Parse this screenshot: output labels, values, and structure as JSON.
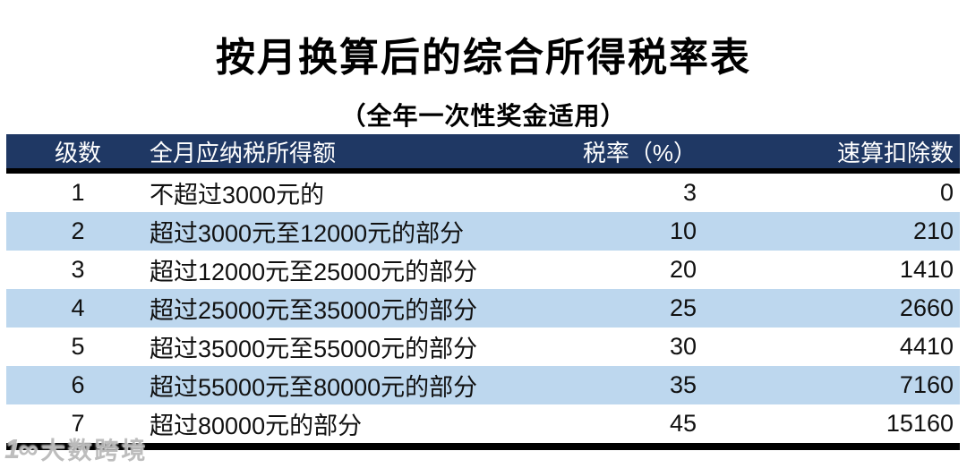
{
  "page": {
    "title": "按月换算后的综合所得税率表",
    "subtitle": "（全年一次性奖金适用）"
  },
  "table": {
    "columns": [
      "级数",
      "全月应纳税所得额",
      "税率（%）",
      "速算扣除数"
    ],
    "rows": [
      {
        "level": "1",
        "income": "不超过3000元的",
        "rate": "3",
        "deduction": "0"
      },
      {
        "level": "2",
        "income": "超过3000元至12000元的部分",
        "rate": "10",
        "deduction": "210"
      },
      {
        "level": "3",
        "income": "超过12000元至25000元的部分",
        "rate": "20",
        "deduction": "1410"
      },
      {
        "level": "4",
        "income": "超过25000元至35000元的部分",
        "rate": "25",
        "deduction": "2660"
      },
      {
        "level": "5",
        "income": "超过35000元至55000元的部分",
        "rate": "30",
        "deduction": "4410"
      },
      {
        "level": "6",
        "income": "超过55000元至80000元的部分",
        "rate": "35",
        "deduction": "7160"
      },
      {
        "level": "7",
        "income": "超过80000元的部分",
        "rate": "45",
        "deduction": "15160"
      }
    ]
  },
  "watermark": {
    "logo": "1∞",
    "text": "大数跨境"
  },
  "colors": {
    "header_bg": "#1F3864",
    "header_text": "#FFFFFF",
    "row_alt_bg": "#BDD7EE",
    "divider": "#000000"
  }
}
